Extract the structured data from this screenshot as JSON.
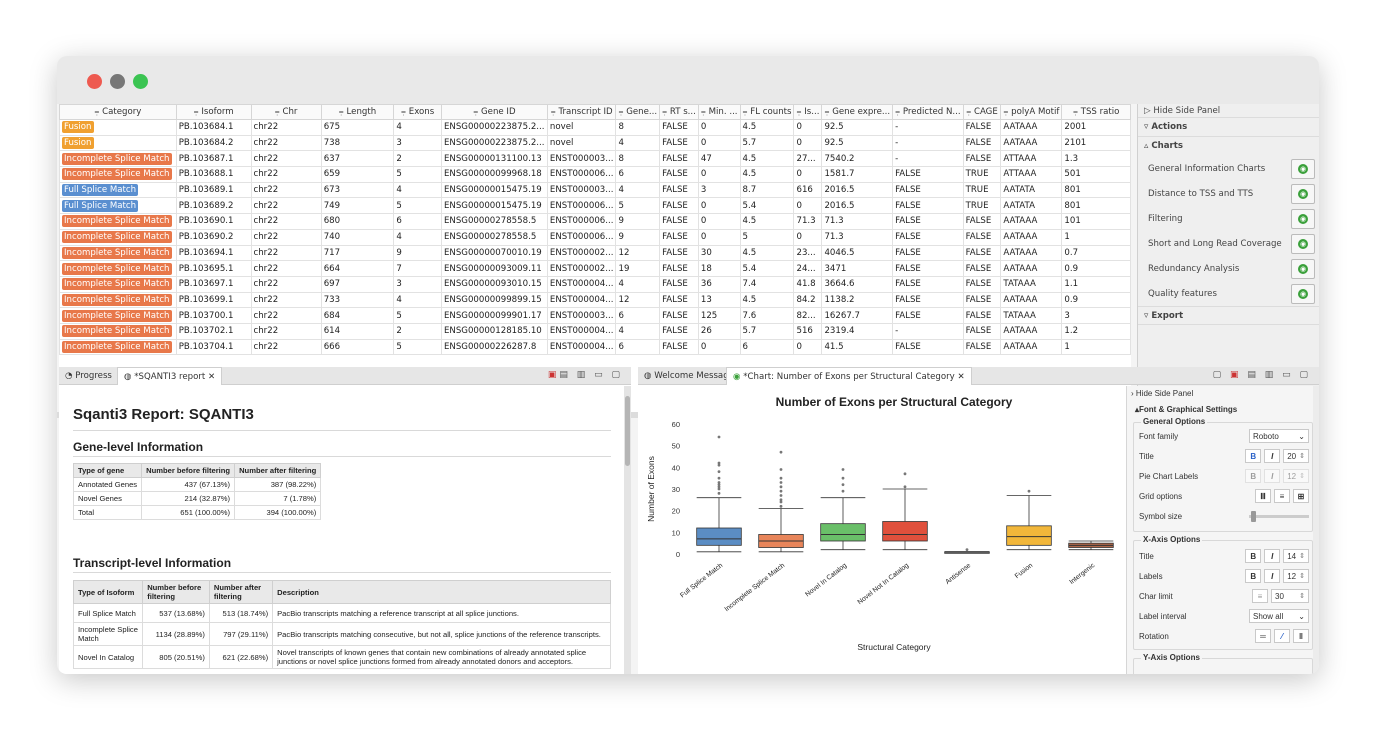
{
  "window": {
    "controls": [
      "close",
      "minimize",
      "zoom"
    ]
  },
  "grid": {
    "columns": [
      "Category",
      "Isoform",
      "Chr",
      "Length",
      "Exons",
      "Gene ID",
      "Transcript ID",
      "Gene...",
      "RT s...",
      "Min. ...",
      "FL counts",
      "Is...",
      "Gene expre...",
      "Predicted N...",
      "CAGE",
      "polyA Motif",
      "TSS ratio"
    ],
    "rows": [
      [
        "Fusion",
        "PB.103684.1",
        "chr22",
        "675",
        "4",
        "ENSG00000223875.2...",
        "novel",
        "8",
        "FALSE",
        "0",
        "4.5",
        "0",
        "92.5",
        "-",
        "FALSE",
        "AATAAA",
        "2001"
      ],
      [
        "Fusion",
        "PB.103684.2",
        "chr22",
        "738",
        "3",
        "ENSG00000223875.2...",
        "novel",
        "4",
        "FALSE",
        "0",
        "5.7",
        "0",
        "92.5",
        "-",
        "FALSE",
        "AATAAA",
        "2101"
      ],
      [
        "Incomplete Splice Match",
        "PB.103687.1",
        "chr22",
        "637",
        "2",
        "ENSG00000131100.13",
        "ENST000003...",
        "8",
        "FALSE",
        "47",
        "4.5",
        "27...",
        "7540.2",
        "-",
        "FALSE",
        "ATTAAA",
        "1.3"
      ],
      [
        "Incomplete Splice Match",
        "PB.103688.1",
        "chr22",
        "659",
        "5",
        "ENSG00000099968.18",
        "ENST000006...",
        "6",
        "FALSE",
        "0",
        "4.5",
        "0",
        "1581.7",
        "FALSE",
        "TRUE",
        "ATTAAA",
        "501"
      ],
      [
        "Full Splice Match",
        "PB.103689.1",
        "chr22",
        "673",
        "4",
        "ENSG00000015475.19",
        "ENST000003...",
        "4",
        "FALSE",
        "3",
        "8.7",
        "616",
        "2016.5",
        "FALSE",
        "TRUE",
        "AATATA",
        "801"
      ],
      [
        "Full Splice Match",
        "PB.103689.2",
        "chr22",
        "749",
        "5",
        "ENSG00000015475.19",
        "ENST000006...",
        "5",
        "FALSE",
        "0",
        "5.4",
        "0",
        "2016.5",
        "FALSE",
        "TRUE",
        "AATATA",
        "801"
      ],
      [
        "Incomplete Splice Match",
        "PB.103690.1",
        "chr22",
        "680",
        "6",
        "ENSG00000278558.5",
        "ENST000006...",
        "9",
        "FALSE",
        "0",
        "4.5",
        "71.3",
        "71.3",
        "FALSE",
        "FALSE",
        "AATAAA",
        "101"
      ],
      [
        "Incomplete Splice Match",
        "PB.103690.2",
        "chr22",
        "740",
        "4",
        "ENSG00000278558.5",
        "ENST000006...",
        "9",
        "FALSE",
        "0",
        "5",
        "0",
        "71.3",
        "FALSE",
        "FALSE",
        "AATAAA",
        "1"
      ],
      [
        "Incomplete Splice Match",
        "PB.103694.1",
        "chr22",
        "717",
        "9",
        "ENSG00000070010.19",
        "ENST000002...",
        "12",
        "FALSE",
        "30",
        "4.5",
        "23...",
        "4046.5",
        "FALSE",
        "FALSE",
        "AATAAA",
        "0.7"
      ],
      [
        "Incomplete Splice Match",
        "PB.103695.1",
        "chr22",
        "664",
        "7",
        "ENSG00000093009.11",
        "ENST000002...",
        "19",
        "FALSE",
        "18",
        "5.4",
        "24...",
        "3471",
        "FALSE",
        "FALSE",
        "AATAAA",
        "0.9"
      ],
      [
        "Incomplete Splice Match",
        "PB.103697.1",
        "chr22",
        "697",
        "3",
        "ENSG00000093010.15",
        "ENST000004...",
        "4",
        "FALSE",
        "36",
        "7.4",
        "41.8",
        "3664.6",
        "FALSE",
        "FALSE",
        "TATAAA",
        "1.1"
      ],
      [
        "Incomplete Splice Match",
        "PB.103699.1",
        "chr22",
        "733",
        "4",
        "ENSG00000099899.15",
        "ENST000004...",
        "12",
        "FALSE",
        "13",
        "4.5",
        "84.2",
        "1138.2",
        "FALSE",
        "FALSE",
        "AATAAA",
        "0.9"
      ],
      [
        "Incomplete Splice Match",
        "PB.103700.1",
        "chr22",
        "684",
        "5",
        "ENSG00000099901.17",
        "ENST000003...",
        "6",
        "FALSE",
        "125",
        "7.6",
        "82...",
        "16267.7",
        "FALSE",
        "FALSE",
        "TATAAA",
        "3"
      ],
      [
        "Incomplete Splice Match",
        "PB.103702.1",
        "chr22",
        "614",
        "2",
        "ENSG00000128185.10",
        "ENST000004...",
        "4",
        "FALSE",
        "26",
        "5.7",
        "516",
        "2319.4",
        "-",
        "FALSE",
        "AATAAA",
        "1.2"
      ],
      [
        "Incomplete Splice Match",
        "PB.103704.1",
        "chr22",
        "666",
        "5",
        "ENSG00000226287.8",
        "ENST000004...",
        "6",
        "FALSE",
        "0",
        "6",
        "0",
        "41.5",
        "FALSE",
        "FALSE",
        "AATAAA",
        "1"
      ]
    ],
    "category_colors": {
      "Fusion": "#f0a030",
      "Incomplete Splice Match": "#e8784a",
      "Full Splice Match": "#5a8fd0"
    }
  },
  "side_panel": {
    "hide": "Hide Side Panel",
    "actions": "Actions",
    "charts": "Charts",
    "chart_items": [
      "General Information Charts",
      "Distance to TSS and TTS",
      "Filtering",
      "Short and Long Read Coverage",
      "Redundancy Analysis",
      "Quality features"
    ],
    "export": "Export"
  },
  "left_tabs": {
    "progress": "Progress",
    "report": "*SQANTI3 report"
  },
  "right_tabs": {
    "welcome": "Welcome Message",
    "chart": "*Chart: Number of Exons per Structural Category"
  },
  "report": {
    "title": "Sqanti3 Report: SQANTI3",
    "gene_heading": "Gene-level Information",
    "gene_headers": [
      "Type of gene",
      "Number before filtering",
      "Number after filtering"
    ],
    "gene_rows": [
      [
        "Annotated Genes",
        "437 (67.13%)",
        "387 (98.22%)"
      ],
      [
        "Novel Genes",
        "214 (32.87%)",
        "7 (1.78%)"
      ],
      [
        "Total",
        "651 (100.00%)",
        "394 (100.00%)"
      ]
    ],
    "transcript_heading": "Transcript-level Information",
    "tx_headers": [
      "Type of Isoform",
      "Number before filtering",
      "Number after filtering",
      "Description"
    ],
    "tx_rows": [
      [
        "Full Splice Match",
        "537 (13.68%)",
        "513 (18.74%)",
        "PacBio transcripts matching a reference transcript at all splice junctions."
      ],
      [
        "Incomplete Splice Match",
        "1134 (28.89%)",
        "797 (29.11%)",
        "PacBio transcripts matching consecutive, but not all, splice junctions of the reference transcripts."
      ],
      [
        "Novel In Catalog",
        "805 (20.51%)",
        "621 (22.68%)",
        "Novel transcripts of known genes that contain new combinations of already annotated splice junctions or novel splice junctions formed from already annotated donors and acceptors."
      ]
    ]
  },
  "chart_data": {
    "type": "box",
    "title": "Number of Exons per Structural Category",
    "xlabel": "Structural Category",
    "ylabel": "Number of Exons",
    "ylim": [
      0,
      60
    ],
    "yticks": [
      0,
      10,
      20,
      30,
      40,
      50,
      60
    ],
    "categories": [
      "Full Splice Match",
      "Incomplete Splice Match",
      "Novel In Catalog",
      "Novel Not In Catalog",
      "Antisense",
      "Fusion",
      "Intergenic"
    ],
    "colors": [
      "#5b8dc4",
      "#e8855a",
      "#6abf69",
      "#e0503c",
      "#888888",
      "#f2b73a",
      "#b0674a"
    ],
    "boxes": [
      {
        "min": 1,
        "q1": 4,
        "median": 7,
        "q3": 12,
        "max": 26,
        "outliers": [
          28,
          30,
          31,
          32,
          33,
          35,
          38,
          41,
          42,
          54
        ]
      },
      {
        "min": 1,
        "q1": 3,
        "median": 6,
        "q3": 9,
        "max": 21,
        "outliers": [
          22,
          24,
          25,
          27,
          29,
          31,
          33,
          35,
          39,
          47
        ]
      },
      {
        "min": 2,
        "q1": 6,
        "median": 9,
        "q3": 14,
        "max": 26,
        "outliers": [
          29,
          32,
          35,
          39
        ]
      },
      {
        "min": 2,
        "q1": 6,
        "median": 9,
        "q3": 15,
        "max": 30,
        "outliers": [
          31,
          37
        ]
      },
      {
        "min": 1,
        "q1": 1,
        "median": 1,
        "q3": 1,
        "max": 1,
        "outliers": [
          2
        ]
      },
      {
        "min": 2,
        "q1": 4,
        "median": 8,
        "q3": 13,
        "max": 27,
        "outliers": [
          29
        ]
      },
      {
        "min": 2,
        "q1": 3,
        "median": 4,
        "q3": 5,
        "max": 6,
        "outliers": []
      }
    ]
  },
  "settings": {
    "hide": "Hide Side Panel",
    "font_graphical": "Font & Graphical Settings",
    "general": "General Options",
    "font_family_label": "Font family",
    "font_family_value": "Roboto",
    "title_label": "Title",
    "title_size": "20",
    "pie_label": "Pie Chart Labels",
    "pie_size": "12",
    "grid_label": "Grid options",
    "symbol_label": "Symbol size",
    "xaxis": "X-Axis Options",
    "x_title_size": "14",
    "labels_label": "Labels",
    "x_labels_size": "12",
    "char_limit_label": "Char limit",
    "char_limit_value": "30",
    "label_interval_label": "Label interval",
    "label_interval_value": "Show all",
    "rotation_label": "Rotation",
    "yaxis": "Y-Axis Options"
  }
}
